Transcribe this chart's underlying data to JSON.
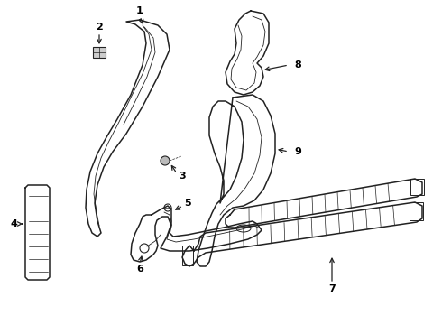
{
  "background_color": "#ffffff",
  "line_color": "#222222",
  "figsize": [
    4.9,
    3.6
  ],
  "dpi": 100,
  "lw_main": 1.1,
  "lw_thin": 0.6,
  "lw_detail": 0.5
}
